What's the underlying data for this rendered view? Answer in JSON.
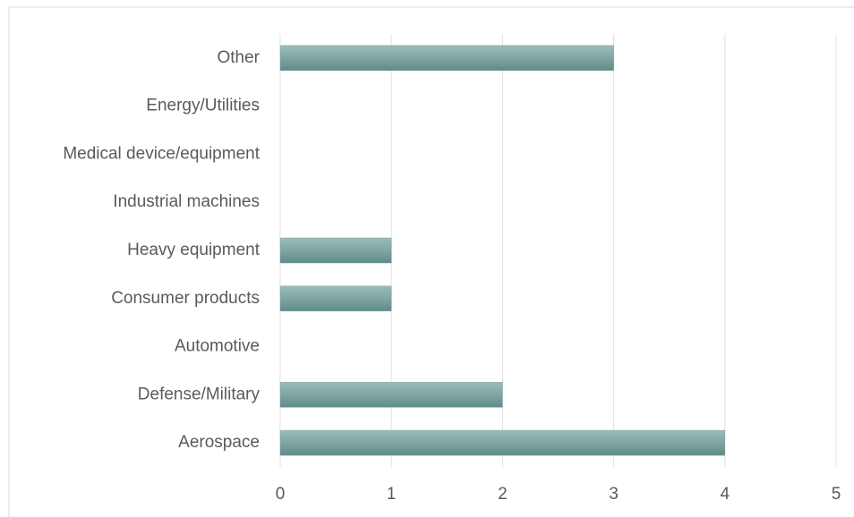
{
  "chart_data": {
    "type": "bar",
    "orientation": "horizontal",
    "categories": [
      "Aerospace",
      "Defense/Military",
      "Automotive",
      "Consumer products",
      "Heavy equipment",
      "Industrial machines",
      "Medical device/equipment",
      "Energy/Utilities",
      "Other"
    ],
    "values": [
      4,
      2,
      0,
      1,
      1,
      0,
      0,
      0,
      3
    ],
    "color": "#7ea6a3",
    "xlim": [
      0,
      5
    ],
    "xticks": [
      0,
      1,
      2,
      3,
      4,
      5
    ],
    "grid": true
  }
}
